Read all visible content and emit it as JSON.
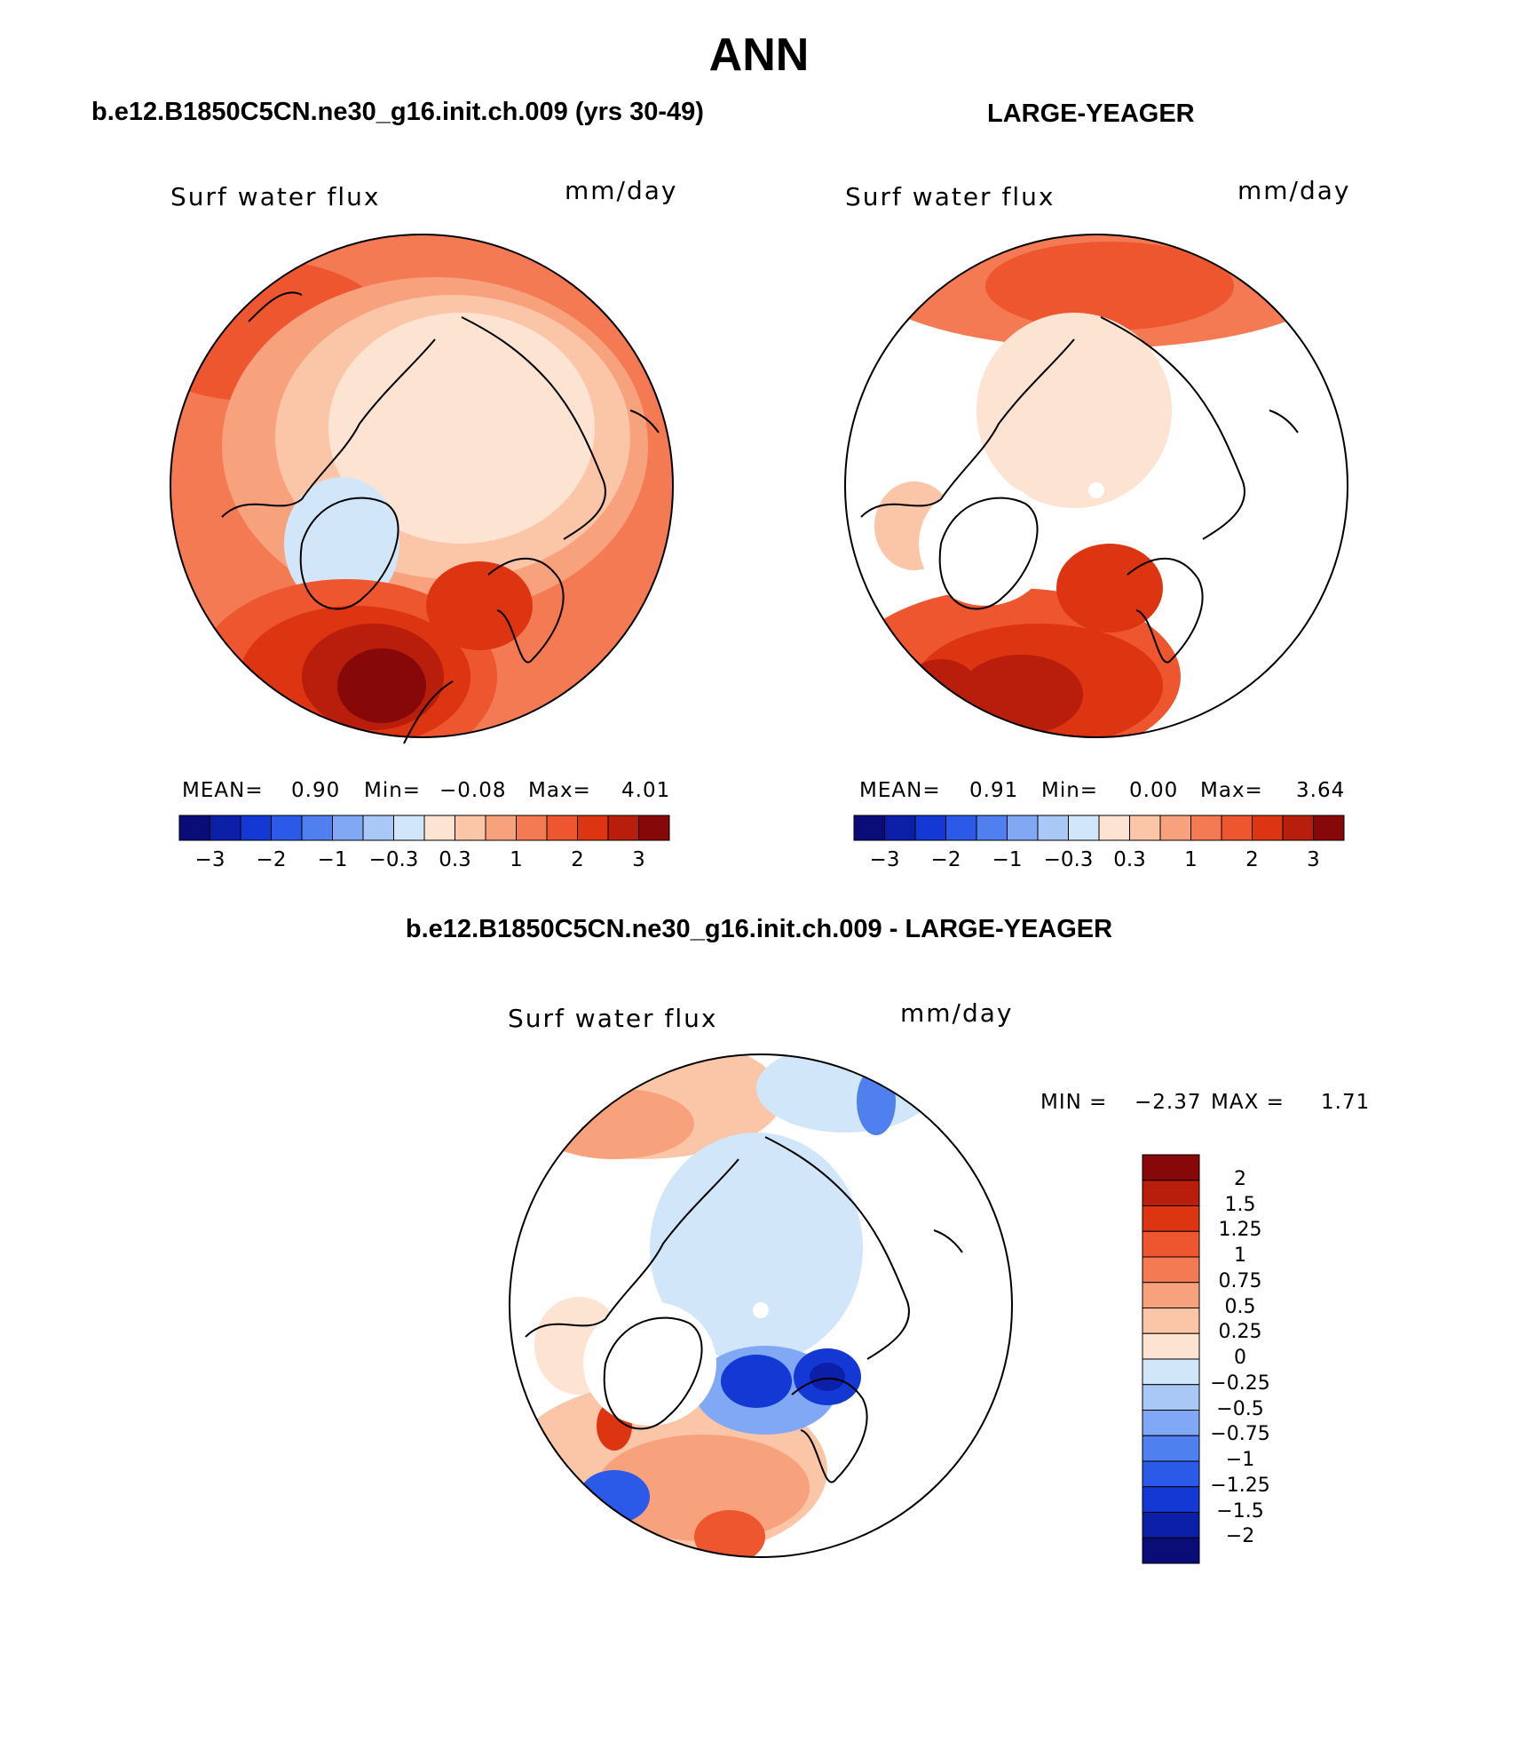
{
  "title": "ANN",
  "left_header": "b.e12.B1850C5CN.ne30_g16.init.ch.009 (yrs 30-49)",
  "right_header": "LARGE-YEAGER",
  "diff_header": "b.e12.B1850C5CN.ne30_g16.init.ch.009 - LARGE-YEAGER",
  "panels": [
    {
      "variable": "Surf water flux",
      "units": "mm/day",
      "stats": {
        "mean_label": "MEAN=",
        "mean": "0.90",
        "min_label": "Min=",
        "min": "−0.08",
        "max_label": "Max=",
        "max": "4.01"
      }
    },
    {
      "variable": "Surf water flux",
      "units": "mm/day",
      "stats": {
        "mean_label": "MEAN=",
        "mean": "0.91",
        "min_label": "Min=",
        "min": "0.00",
        "max_label": "Max=",
        "max": "3.64"
      }
    },
    {
      "variable": "Surf water flux",
      "units": "mm/day",
      "stats": {
        "min_label": "MIN =",
        "min": "−2.37",
        "max_label": "MAX =",
        "max": "1.71"
      }
    }
  ],
  "colorbar": {
    "colors": [
      "#0a0d78",
      "#0b1fa8",
      "#1438d4",
      "#2c5ae8",
      "#5080f0",
      "#80a8f4",
      "#a9c8f6",
      "#d2e6fa",
      "#fde3d2",
      "#fbc5a7",
      "#f7a27c",
      "#f47a54",
      "#ee5630",
      "#dd3412",
      "#b81e0b",
      "#870808"
    ],
    "tick_labels": [
      "−3",
      "−2",
      "−1",
      "−0.3",
      "0.3",
      "1",
      "2",
      "3"
    ]
  },
  "diff_colorbar": {
    "colors": [
      "#870808",
      "#b81e0b",
      "#dd3412",
      "#ee5630",
      "#f47a54",
      "#f7a27c",
      "#fbc5a7",
      "#fde3d2",
      "#d2e6fa",
      "#a9c8f6",
      "#80a8f4",
      "#5080f0",
      "#2c5ae8",
      "#1438d4",
      "#0b1fa8",
      "#0a0d78"
    ],
    "tick_labels": [
      "2",
      "1.5",
      "1.25",
      "1",
      "0.75",
      "0.5",
      "0.25",
      "0",
      "−0.25",
      "−0.5",
      "−0.75",
      "−1",
      "−1.25",
      "−1.5",
      "−2"
    ]
  }
}
